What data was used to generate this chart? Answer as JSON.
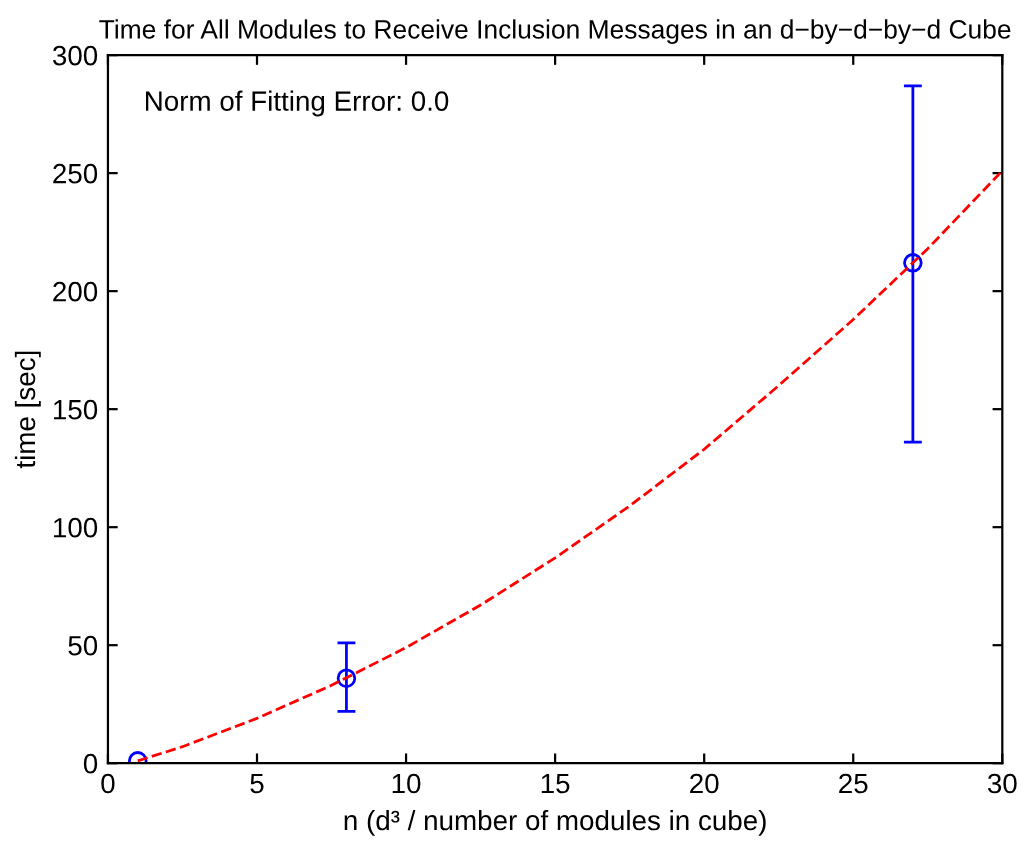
{
  "chart_data": {
    "type": "scatter",
    "title": "Time for All Modules to Receive Inclusion Messages in an d−by−d−by−d Cube",
    "xlabel": "n (d³ / number of modules in cube)",
    "ylabel": "time [sec]",
    "annotations": [
      "Norm of Fitting Error: 0.0"
    ],
    "xlim": [
      0,
      30
    ],
    "ylim": [
      0,
      300
    ],
    "xticks": [
      0,
      5,
      10,
      15,
      20,
      25,
      30
    ],
    "yticks": [
      0,
      50,
      100,
      150,
      200,
      250,
      300
    ],
    "grid": false,
    "series": [
      {
        "color": "#0000ff",
        "marker": "circle",
        "x": [
          1,
          8,
          27
        ],
        "values": [
          1,
          36,
          212
        ],
        "errors": [
          null,
          [
            22,
            51
          ],
          [
            136,
            287
          ]
        ]
      },
      {
        "type": "line",
        "color": "#ff0000",
        "line_style": "dashed",
        "marker": "none",
        "x": [
          1,
          2.5,
          5,
          7.5,
          10,
          12.5,
          15,
          17.5,
          20,
          22.5,
          25,
          27.5,
          30
        ],
        "values": [
          1,
          7,
          19,
          33,
          49,
          67,
          87,
          109,
          133,
          160,
          188,
          218,
          251
        ]
      }
    ]
  }
}
